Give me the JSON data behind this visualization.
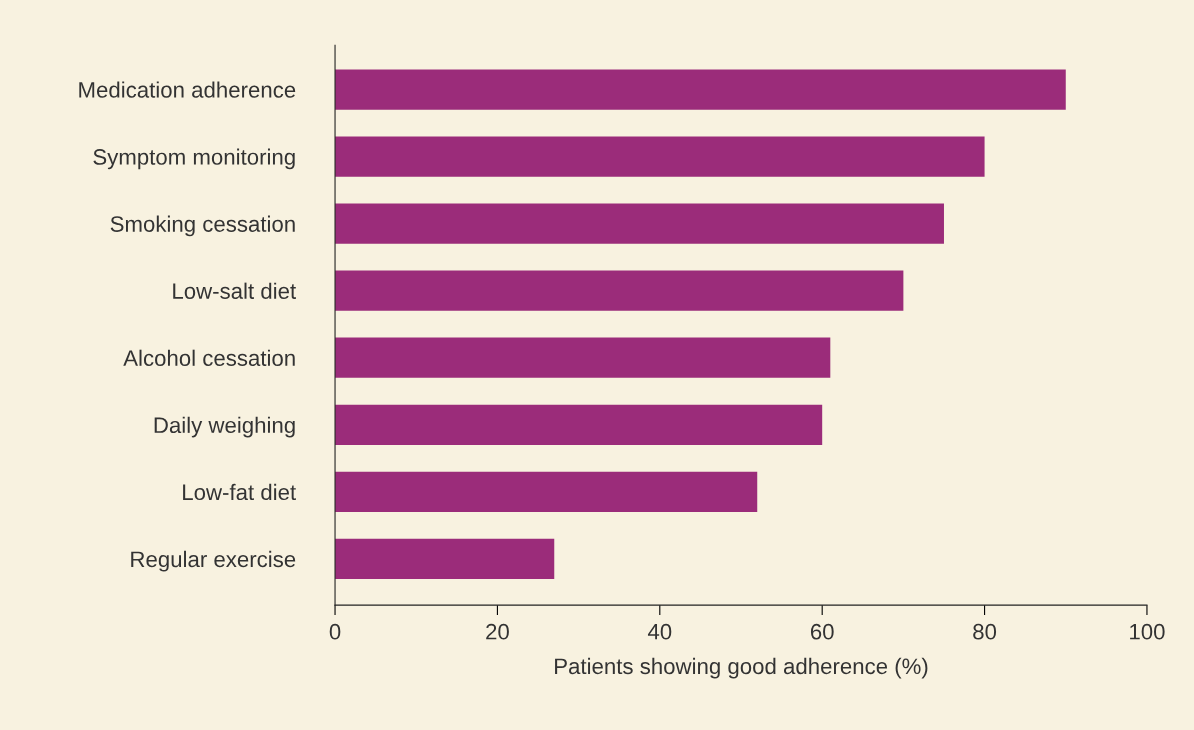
{
  "chart_data": {
    "type": "bar",
    "orientation": "horizontal",
    "categories": [
      "Medication adherence",
      "Symptom monitoring",
      "Smoking cessation",
      "Low-salt diet",
      "Alcohol cessation",
      "Daily weighing",
      "Low-fat diet",
      "Regular exercise"
    ],
    "values": [
      90,
      80,
      75,
      70,
      61,
      60,
      52,
      27
    ],
    "color": "#9b2c7a",
    "xlabel": "Patients showing good adherence (%)",
    "xlim": [
      0,
      100
    ],
    "xticks": [
      0,
      20,
      40,
      60,
      80,
      100
    ],
    "grid": false,
    "legend": false
  }
}
